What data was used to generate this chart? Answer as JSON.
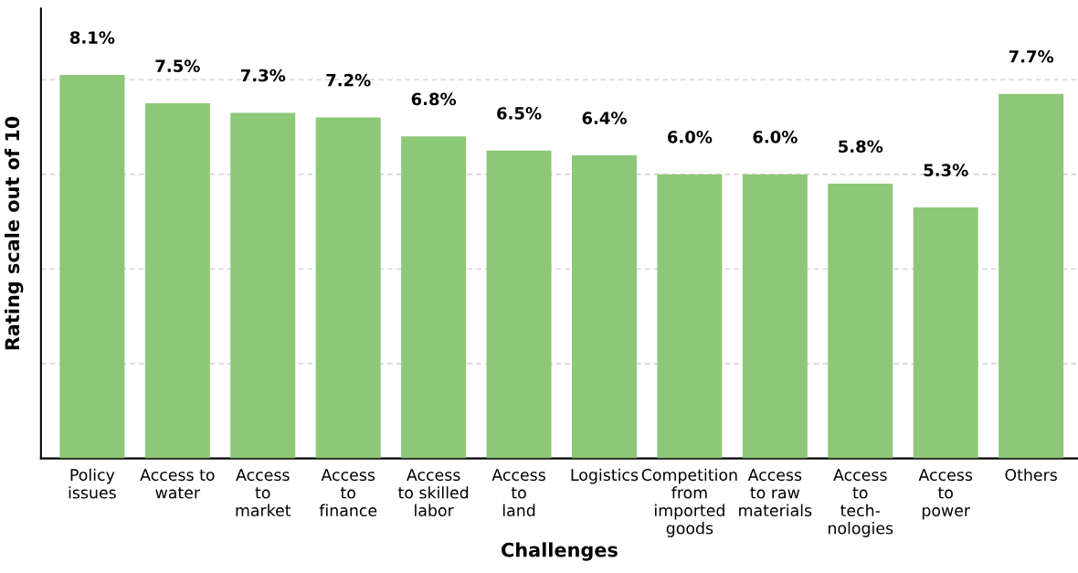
{
  "chart_data": {
    "type": "bar",
    "xlabel": "Challenges",
    "ylabel": "Rating scale out of 10",
    "categories": [
      "Policy\nissues",
      "Access to\nwater",
      "Access\nto\nmarket",
      "Access\nto\nfinance",
      "Access\nto skilled\nlabor",
      "Access\nto\nland",
      "Logistics",
      "Competition\nfrom\nimported\ngoods",
      "Access\nto raw\nmaterials",
      "Access\nto\ntech-\nnologies",
      "Access\nto\npower",
      "Others"
    ],
    "values": [
      8.1,
      7.5,
      7.3,
      7.2,
      6.8,
      6.5,
      6.4,
      6.0,
      6.0,
      5.8,
      5.3,
      7.7
    ],
    "value_labels": [
      "8.1%",
      "7.5%",
      "7.3%",
      "7.2%",
      "6.8%",
      "6.5%",
      "6.4%",
      "6.0%",
      "6.0%",
      "5.8%",
      "5.3%",
      "7.7%"
    ],
    "color": "#8dc878",
    "ylim": [
      0,
      9.5
    ],
    "yticks": [
      {
        "value": 2,
        "label": null
      },
      {
        "value": 4,
        "label": null
      },
      {
        "value": 6,
        "label": null
      },
      {
        "value": 8,
        "label": null
      }
    ],
    "grid": "y",
    "tick_labels": "x"
  }
}
